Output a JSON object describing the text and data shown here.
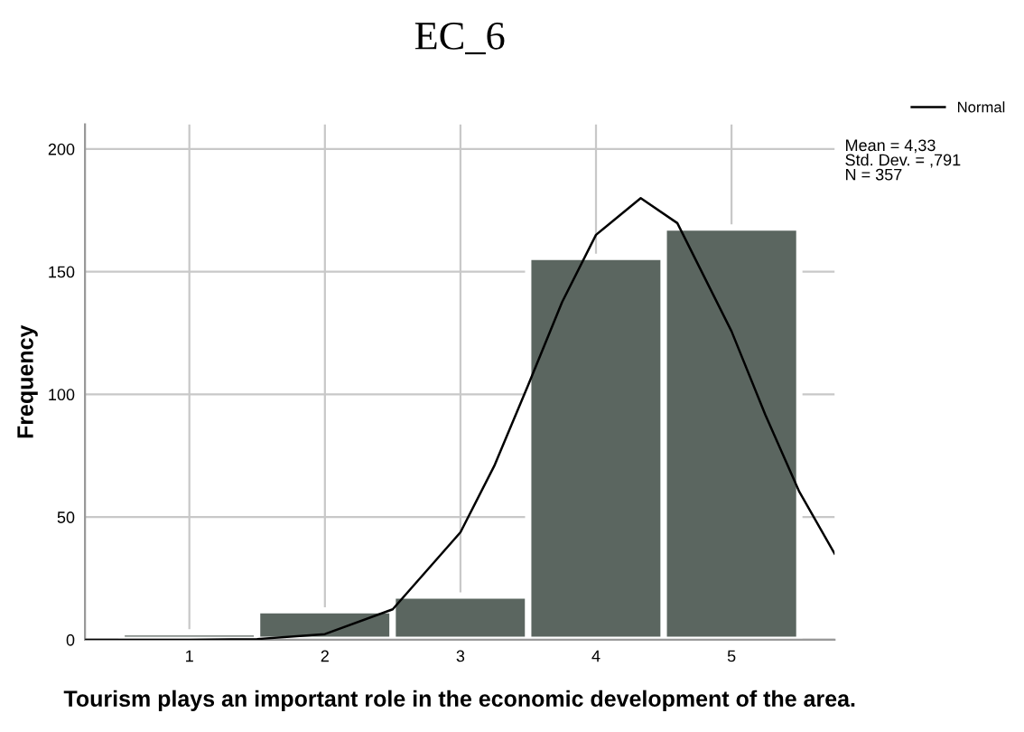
{
  "chart_data": {
    "type": "histogram",
    "title": "EC_6",
    "xlabel": "Tourism plays an important role in the economic development of the area.",
    "ylabel": "Frequency",
    "bins": [
      0.5,
      1.5,
      2.5,
      3.5,
      4.5,
      5.5
    ],
    "values": [
      3,
      12,
      18,
      156,
      168
    ],
    "color": "#5b6660",
    "series": [
      {
        "name": "Normal",
        "type": "line",
        "color": "#000000",
        "x": [
          0.23,
          1.0,
          1.5,
          2.0,
          2.5,
          3.0,
          3.25,
          3.5,
          3.75,
          4.0,
          4.33,
          4.6,
          5.0,
          5.25,
          5.5,
          5.76
        ],
        "values": [
          0,
          0,
          0.3,
          2.3,
          12.4,
          43.8,
          70.9,
          103.8,
          137.6,
          165,
          180,
          169.8,
          125.7,
          91.6,
          60.3,
          35.1
        ]
      }
    ],
    "xlim": [
      0.23,
      5.76
    ],
    "ylim": [
      0,
      210
    ],
    "xticks": [
      1,
      2,
      3,
      4,
      5
    ],
    "yticks": [
      0,
      50,
      100,
      150,
      200
    ],
    "grid": true,
    "legend": "top right",
    "annotations": [
      "Mean = 4,33",
      "Std. Dev. = ,791",
      "N = 357"
    ]
  }
}
